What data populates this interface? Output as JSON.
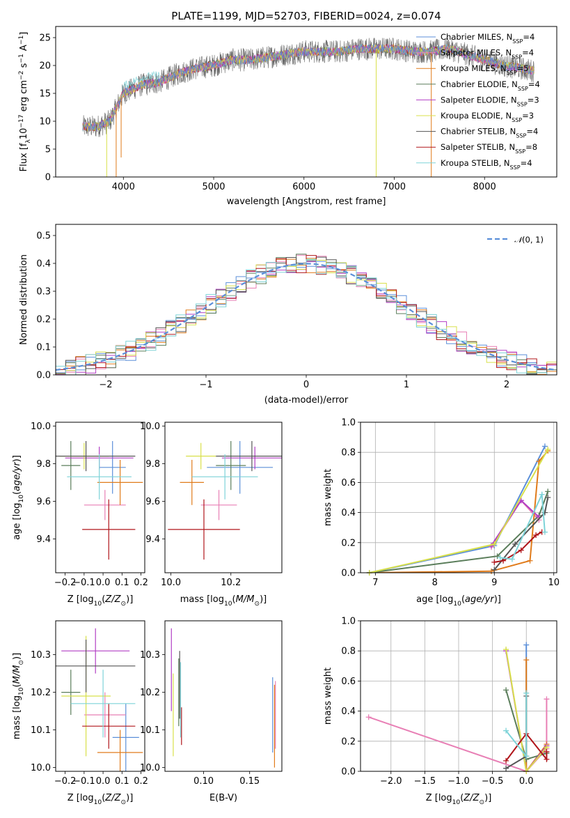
{
  "figure": {
    "title": "PLATE=1199, MJD=52703, FIBERID=0024, z=0.074",
    "panels": [
      {
        "id": "spectrum",
        "xlabel": "wavelength [Angstrom, rest frame]",
        "ylabel": "Flux [f_λ 10^-17 erg cm^-2 s^-1 A^-1]"
      },
      {
        "id": "residuals",
        "xlabel": "(data-model)/error",
        "ylabel": "Normed distribution",
        "legend": "N(0,1)"
      },
      {
        "id": "age_vs_Z",
        "xlabel": "Z [log10(Z/Z⊙)]",
        "ylabel": "age  [log10(age/yr)]"
      },
      {
        "id": "age_vs_mass",
        "xlabel": "mass [log10(M/M⊙)]",
        "ylabel": ""
      },
      {
        "id": "massweight_vs_age",
        "xlabel": "age  [log10(age/yr)]",
        "ylabel": "mass weight"
      },
      {
        "id": "mass_vs_Z",
        "xlabel": "Z [log10(Z/Z⊙)]",
        "ylabel": "mass [log10(M/M⊙)]"
      },
      {
        "id": "mass_vs_ebv",
        "xlabel": "E(B-V)",
        "ylabel": ""
      },
      {
        "id": "massweight_vs_Z",
        "xlabel": "Z [log10(Z/Z⊙)]",
        "ylabel": "mass weight"
      }
    ]
  },
  "models": [
    {
      "name": "Chabrier MILES",
      "nssp": 4,
      "color": "#5b8fd9"
    },
    {
      "name": "Salpeter MILES",
      "nssp": 4,
      "color": "#e87fb5"
    },
    {
      "name": "Kroupa MILES",
      "nssp": 5,
      "color": "#e07b1a"
    },
    {
      "name": "Chabrier ELODIE",
      "nssp": 4,
      "color": "#5a7d5a"
    },
    {
      "name": "Salpeter ELODIE",
      "nssp": 3,
      "color": "#b23ec4"
    },
    {
      "name": "Kroupa ELODIE",
      "nssp": 3,
      "color": "#d8e04a"
    },
    {
      "name": "Chabrier STELIB",
      "nssp": 4,
      "color": "#555555"
    },
    {
      "name": "Salpeter STELIB",
      "nssp": 8,
      "color": "#b0151a"
    },
    {
      "name": "Kroupa STELIB",
      "nssp": 4,
      "color": "#7dd3d8"
    }
  ],
  "chart_data": [
    {
      "type": "line",
      "panel": "spectrum",
      "xlim": [
        3250,
        8800
      ],
      "ylim": [
        0,
        27
      ],
      "xticks": [
        4000,
        5000,
        6000,
        7000,
        8000
      ],
      "yticks": [
        0,
        5,
        10,
        15,
        20,
        25
      ],
      "x": [
        3550,
        3700,
        3850,
        4000,
        4200,
        4400,
        4600,
        4800,
        5000,
        5200,
        5400,
        5600,
        5800,
        6000,
        6200,
        6400,
        6600,
        6800,
        7000,
        7200,
        7400,
        7600,
        7800,
        8000,
        8200,
        8400,
        8550
      ],
      "series": [
        {
          "name": "spectrum envelope",
          "values": [
            9,
            9,
            10,
            15,
            16.5,
            17,
            18.5,
            19.5,
            20,
            21,
            21,
            21.5,
            22,
            22.5,
            22.5,
            22.5,
            23,
            23,
            23,
            22.5,
            22.5,
            23,
            22,
            21,
            20,
            19.5,
            19
          ]
        }
      ],
      "grid": false
    },
    {
      "type": "line",
      "panel": "residuals",
      "xlim": [
        -2.5,
        2.5
      ],
      "ylim": [
        0,
        0.54
      ],
      "xticks": [
        -2,
        -1,
        0,
        1,
        2
      ],
      "yticks": [
        0.0,
        0.1,
        0.2,
        0.3,
        0.4,
        0.5
      ],
      "series": [
        {
          "name": "N(0,1)",
          "function": "gaussian",
          "mean": 0,
          "sigma": 1
        }
      ],
      "histogram_bin_width": 0.1,
      "grid": true,
      "legend": "top-right"
    },
    {
      "type": "scatter",
      "panel": "age_vs_Z",
      "xlim": [
        -0.25,
        0.22
      ],
      "ylim": [
        9.22,
        10.02
      ],
      "xticks": [
        -0.2,
        -0.1,
        0.0,
        0.1,
        0.2
      ],
      "yticks": [
        9.4,
        9.6,
        9.8,
        10.0
      ],
      "points": [
        {
          "model": 0,
          "x": 0.05,
          "y": 9.78,
          "xerr": 0.07,
          "yerr": 0.14
        },
        {
          "model": 1,
          "x": 0.01,
          "y": 9.58,
          "xerr": 0.11,
          "yerr": 0.08
        },
        {
          "model": 2,
          "x": 0.09,
          "y": 9.7,
          "xerr": 0.12,
          "yerr": 0.12
        },
        {
          "model": 3,
          "x": -0.17,
          "y": 9.79,
          "xerr": 0.05,
          "yerr": 0.13
        },
        {
          "model": 4,
          "x": -0.02,
          "y": 9.83,
          "xerr": 0.18,
          "yerr": 0.06
        },
        {
          "model": 5,
          "x": -0.1,
          "y": 9.84,
          "xerr": 0.13,
          "yerr": 0.07
        },
        {
          "model": 6,
          "x": -0.09,
          "y": 9.84,
          "xerr": 0.26,
          "yerr": 0.08
        },
        {
          "model": 7,
          "x": 0.03,
          "y": 9.45,
          "xerr": 0.14,
          "yerr": 0.16
        },
        {
          "model": 8,
          "x": -0.02,
          "y": 9.73,
          "xerr": 0.17,
          "yerr": 0.12
        }
      ]
    },
    {
      "type": "scatter",
      "panel": "age_vs_mass",
      "xlim": [
        9.98,
        10.37
      ],
      "ylim": [
        9.22,
        10.02
      ],
      "xticks": [
        10.0,
        10.2
      ],
      "yticks": [
        9.4,
        9.6,
        9.8,
        10.0
      ],
      "points": [
        {
          "model": 0,
          "x": 10.23,
          "y": 9.78,
          "xerr": 0.11,
          "yerr": 0.14
        },
        {
          "model": 1,
          "x": 10.16,
          "y": 9.58,
          "xerr": 0.06,
          "yerr": 0.08
        },
        {
          "model": 2,
          "x": 10.07,
          "y": 9.7,
          "xerr": 0.04,
          "yerr": 0.12
        },
        {
          "model": 3,
          "x": 10.2,
          "y": 9.79,
          "xerr": 0.05,
          "yerr": 0.13
        },
        {
          "model": 4,
          "x": 10.28,
          "y": 9.83,
          "xerr": 0.11,
          "yerr": 0.06
        },
        {
          "model": 5,
          "x": 10.1,
          "y": 9.84,
          "xerr": 0.05,
          "yerr": 0.07
        },
        {
          "model": 6,
          "x": 10.27,
          "y": 9.84,
          "xerr": 0.12,
          "yerr": 0.08
        },
        {
          "model": 7,
          "x": 10.11,
          "y": 9.45,
          "xerr": 0.12,
          "yerr": 0.16
        },
        {
          "model": 8,
          "x": 10.18,
          "y": 9.73,
          "xerr": 0.11,
          "yerr": 0.12
        }
      ]
    },
    {
      "type": "line",
      "panel": "massweight_vs_age",
      "xlim": [
        6.75,
        10.05
      ],
      "ylim": [
        0,
        1.0
      ],
      "xticks": [
        7,
        8,
        9,
        10
      ],
      "yticks": [
        0.0,
        0.2,
        0.4,
        0.6,
        0.8,
        1.0
      ],
      "series": [
        {
          "model": 0,
          "x": [
            6.9,
            9.0,
            9.85
          ],
          "values": [
            0.0,
            0.18,
            0.84
          ]
        },
        {
          "model": 1,
          "x": [
            8.95,
            9.45,
            9.75
          ],
          "values": [
            0.17,
            0.48,
            0.35
          ]
        },
        {
          "model": 2,
          "x": [
            6.9,
            8.95,
            9.6,
            9.75,
            9.9
          ],
          "values": [
            0.0,
            0.01,
            0.08,
            0.74,
            0.81
          ]
        },
        {
          "model": 3,
          "x": [
            6.9,
            9.05,
            9.75,
            9.9
          ],
          "values": [
            0.0,
            0.11,
            0.38,
            0.54
          ]
        },
        {
          "model": 4,
          "x": [
            8.95,
            9.45,
            9.75
          ],
          "values": [
            0.18,
            0.48,
            0.37
          ]
        },
        {
          "model": 5,
          "x": [
            6.9,
            9.0,
            9.9
          ],
          "values": [
            0.0,
            0.19,
            0.82
          ]
        },
        {
          "model": 6,
          "x": [
            9.0,
            9.35,
            9.85,
            9.9
          ],
          "values": [
            0.02,
            0.19,
            0.4,
            0.5
          ]
        },
        {
          "model": 7,
          "x": [
            9.0,
            9.15,
            9.45,
            9.7,
            9.8
          ],
          "values": [
            0.07,
            0.08,
            0.15,
            0.25,
            0.27
          ]
        },
        {
          "model": 8,
          "x": [
            9.1,
            9.3,
            9.8,
            9.85
          ],
          "values": [
            0.1,
            0.09,
            0.52,
            0.27
          ]
        }
      ],
      "grid": true
    },
    {
      "type": "scatter",
      "panel": "mass_vs_Z",
      "xlim": [
        -0.25,
        0.22
      ],
      "ylim": [
        9.99,
        10.39
      ],
      "xticks": [
        -0.2,
        -0.1,
        0.0,
        0.1,
        0.2
      ],
      "yticks": [
        10.0,
        10.1,
        10.2,
        10.3
      ],
      "points": [
        {
          "model": 0,
          "x": 0.12,
          "y": 10.08,
          "xerr": 0.07,
          "yerr": 0.09
        },
        {
          "model": 1,
          "x": 0.01,
          "y": 10.14,
          "xerr": 0.11,
          "yerr": 0.06
        },
        {
          "model": 2,
          "x": 0.09,
          "y": 10.04,
          "xerr": 0.12,
          "yerr": 0.06
        },
        {
          "model": 3,
          "x": -0.17,
          "y": 10.2,
          "xerr": 0.05,
          "yerr": 0.06
        },
        {
          "model": 4,
          "x": -0.04,
          "y": 10.31,
          "xerr": 0.18,
          "yerr": 0.06
        },
        {
          "model": 5,
          "x": -0.09,
          "y": 10.19,
          "xerr": 0.13,
          "yerr": 0.16
        },
        {
          "model": 6,
          "x": -0.09,
          "y": 10.27,
          "xerr": 0.26,
          "yerr": 0.07
        },
        {
          "model": 7,
          "x": 0.03,
          "y": 10.11,
          "xerr": 0.14,
          "yerr": 0.06
        },
        {
          "model": 8,
          "x": 0.0,
          "y": 10.17,
          "xerr": 0.17,
          "yerr": 0.09
        }
      ]
    },
    {
      "type": "scatter",
      "panel": "mass_vs_ebv",
      "xlim": [
        0.058,
        0.185
      ],
      "ylim": [
        9.99,
        10.39
      ],
      "xticks": [
        0.1,
        0.15
      ],
      "yticks": [
        10.0,
        10.1,
        10.2,
        10.3
      ],
      "points": [
        {
          "model": 0,
          "x": 0.175,
          "y": 10.14,
          "yerr": 0.1
        },
        {
          "model": 1,
          "x": 0.178,
          "y": 10.14,
          "yerr": 0.09
        },
        {
          "model": 2,
          "x": 0.177,
          "y": 10.11,
          "yerr": 0.11
        },
        {
          "model": 3,
          "x": 0.073,
          "y": 10.2,
          "yerr": 0.09
        },
        {
          "model": 4,
          "x": 0.065,
          "y": 10.26,
          "yerr": 0.11
        },
        {
          "model": 5,
          "x": 0.067,
          "y": 10.14,
          "yerr": 0.11
        },
        {
          "model": 6,
          "x": 0.074,
          "y": 10.22,
          "yerr": 0.09
        },
        {
          "model": 7,
          "x": 0.076,
          "y": 10.11,
          "yerr": 0.05
        },
        {
          "model": 8,
          "x": 0.075,
          "y": 10.18,
          "yerr": 0.1
        }
      ]
    },
    {
      "type": "line",
      "panel": "massweight_vs_Z",
      "xlim": [
        -2.45,
        0.45
      ],
      "ylim": [
        0,
        1.0
      ],
      "xticks": [
        -2.0,
        -1.5,
        -1.0,
        -0.5,
        0.0
      ],
      "yticks": [
        0.0,
        0.2,
        0.4,
        0.6,
        0.8,
        1.0
      ],
      "series": [
        {
          "model": 0,
          "x": [
            0.0,
            0.0
          ],
          "values": [
            0.0,
            0.84
          ]
        },
        {
          "model": 1,
          "x": [
            -2.33,
            0.0,
            0.3,
            0.3
          ],
          "values": [
            0.36,
            0.0,
            0.15,
            0.48
          ]
        },
        {
          "model": 2,
          "x": [
            0.0,
            0.0,
            0.3
          ],
          "values": [
            0.74,
            0.0,
            0.18
          ]
        },
        {
          "model": 3,
          "x": [
            -0.3,
            0.0,
            0.3
          ],
          "values": [
            0.54,
            0.08,
            0.12
          ]
        },
        {
          "model": 4,
          "x": [
            -0.3,
            0.0,
            0.3
          ],
          "values": [
            0.8,
            0.0,
            0.17
          ]
        },
        {
          "model": 5,
          "x": [
            -0.3,
            0.0,
            0.3
          ],
          "values": [
            0.81,
            0.0,
            0.16
          ]
        },
        {
          "model": 6,
          "x": [
            -0.3,
            0.0,
            0.0
          ],
          "values": [
            0.02,
            0.1,
            0.5
          ]
        },
        {
          "model": 7,
          "x": [
            -0.3,
            0.0,
            0.3,
            0.3
          ],
          "values": [
            0.07,
            0.25,
            0.08,
            0.13
          ]
        },
        {
          "model": 8,
          "x": [
            -0.3,
            0.0,
            0.0
          ],
          "values": [
            0.27,
            0.1,
            0.52
          ]
        }
      ],
      "grid": true
    }
  ]
}
